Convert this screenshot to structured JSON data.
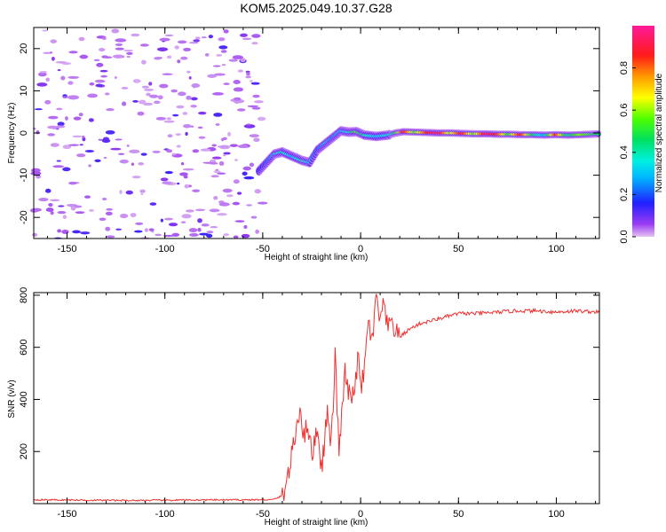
{
  "title": "KOM5.2025.049.10.37.G28",
  "chart_data": [
    {
      "type": "heatmap",
      "xlabel": "Height of straight line (km)",
      "ylabel": "Frequency (Hz)",
      "xlim": [
        -167,
        122
      ],
      "ylim": [
        -25,
        25
      ],
      "xticks": [
        -150,
        -100,
        -50,
        0,
        50,
        100
      ],
      "yticks": [
        -20,
        -10,
        0,
        10,
        20
      ],
      "colorbar": {
        "label": "Normalized spectral amplitude",
        "range": [
          0,
          1
        ],
        "ticks": [
          "0.0",
          "0.2",
          "0.4",
          "0.6",
          "0.8"
        ]
      },
      "noise_region_x": [
        -167,
        -50
      ],
      "trace": [
        {
          "x": -52,
          "y": -9,
          "amp": 0.15
        },
        {
          "x": -48,
          "y": -7,
          "amp": 0.2
        },
        {
          "x": -44,
          "y": -5,
          "amp": 0.3
        },
        {
          "x": -40,
          "y": -4.5,
          "amp": 0.4
        },
        {
          "x": -35,
          "y": -5.5,
          "amp": 0.3
        },
        {
          "x": -30,
          "y": -6.5,
          "amp": 0.4
        },
        {
          "x": -26,
          "y": -7,
          "amp": 0.3
        },
        {
          "x": -22,
          "y": -4,
          "amp": 0.2
        },
        {
          "x": -18,
          "y": -2.5,
          "amp": 0.3
        },
        {
          "x": -14,
          "y": -1,
          "amp": 0.25
        },
        {
          "x": -10,
          "y": 0.5,
          "amp": 0.3
        },
        {
          "x": -6,
          "y": 0.2,
          "amp": 0.35
        },
        {
          "x": -2,
          "y": 0.3,
          "amp": 0.55
        },
        {
          "x": 2,
          "y": -0.5,
          "amp": 0.4
        },
        {
          "x": 8,
          "y": -0.8,
          "amp": 0.3
        },
        {
          "x": 14,
          "y": -0.5,
          "amp": 0.35
        },
        {
          "x": 18,
          "y": 0,
          "amp": 0.45
        },
        {
          "x": 22,
          "y": 0.3,
          "amp": 0.9
        },
        {
          "x": 28,
          "y": 0.2,
          "amp": 0.55
        },
        {
          "x": 34,
          "y": 0.1,
          "amp": 0.85
        },
        {
          "x": 40,
          "y": 0,
          "amp": 0.95
        },
        {
          "x": 46,
          "y": 0,
          "amp": 0.6
        },
        {
          "x": 52,
          "y": -0.1,
          "amp": 0.9
        },
        {
          "x": 58,
          "y": -0.2,
          "amp": 0.55
        },
        {
          "x": 64,
          "y": -0.2,
          "amp": 0.92
        },
        {
          "x": 70,
          "y": -0.3,
          "amp": 0.85
        },
        {
          "x": 76,
          "y": -0.3,
          "amp": 0.5
        },
        {
          "x": 82,
          "y": -0.4,
          "amp": 0.9
        },
        {
          "x": 88,
          "y": -0.4,
          "amp": 0.45
        },
        {
          "x": 94,
          "y": -0.5,
          "amp": 0.3
        },
        {
          "x": 100,
          "y": -0.4,
          "amp": 0.85
        },
        {
          "x": 106,
          "y": -0.5,
          "amp": 0.4
        },
        {
          "x": 112,
          "y": -0.4,
          "amp": 0.6
        },
        {
          "x": 118,
          "y": -0.3,
          "amp": 0.5
        },
        {
          "x": 122,
          "y": -0.2,
          "amp": 0.45
        }
      ]
    },
    {
      "type": "line",
      "xlabel": "Height of straight line (km)",
      "ylabel": "SNR (v/v)",
      "xlim": [
        -167,
        122
      ],
      "ylim": [
        0,
        810
      ],
      "xticks": [
        -150,
        -100,
        -50,
        0,
        50,
        100
      ],
      "yticks": [
        200,
        400,
        600,
        800
      ],
      "color": "#f03030",
      "x": [
        -167,
        -120,
        -80,
        -45,
        -40,
        -37,
        -34,
        -31,
        -29,
        -27,
        -25,
        -22,
        -20,
        -17,
        -15,
        -13,
        -11,
        -8,
        -5,
        -3,
        -1,
        0,
        2,
        4,
        6,
        8,
        10,
        12,
        14,
        16,
        18,
        20,
        25,
        30,
        35,
        40,
        45,
        50,
        60,
        70,
        80,
        90,
        100,
        110,
        122
      ],
      "y": [
        15,
        12,
        14,
        15,
        30,
        110,
        230,
        380,
        250,
        320,
        180,
        300,
        130,
        350,
        220,
        560,
        200,
        500,
        380,
        470,
        560,
        430,
        520,
        700,
        620,
        790,
        700,
        760,
        660,
        710,
        650,
        640,
        670,
        690,
        700,
        710,
        720,
        730,
        730,
        735,
        740,
        740,
        735,
        740,
        735
      ]
    }
  ]
}
